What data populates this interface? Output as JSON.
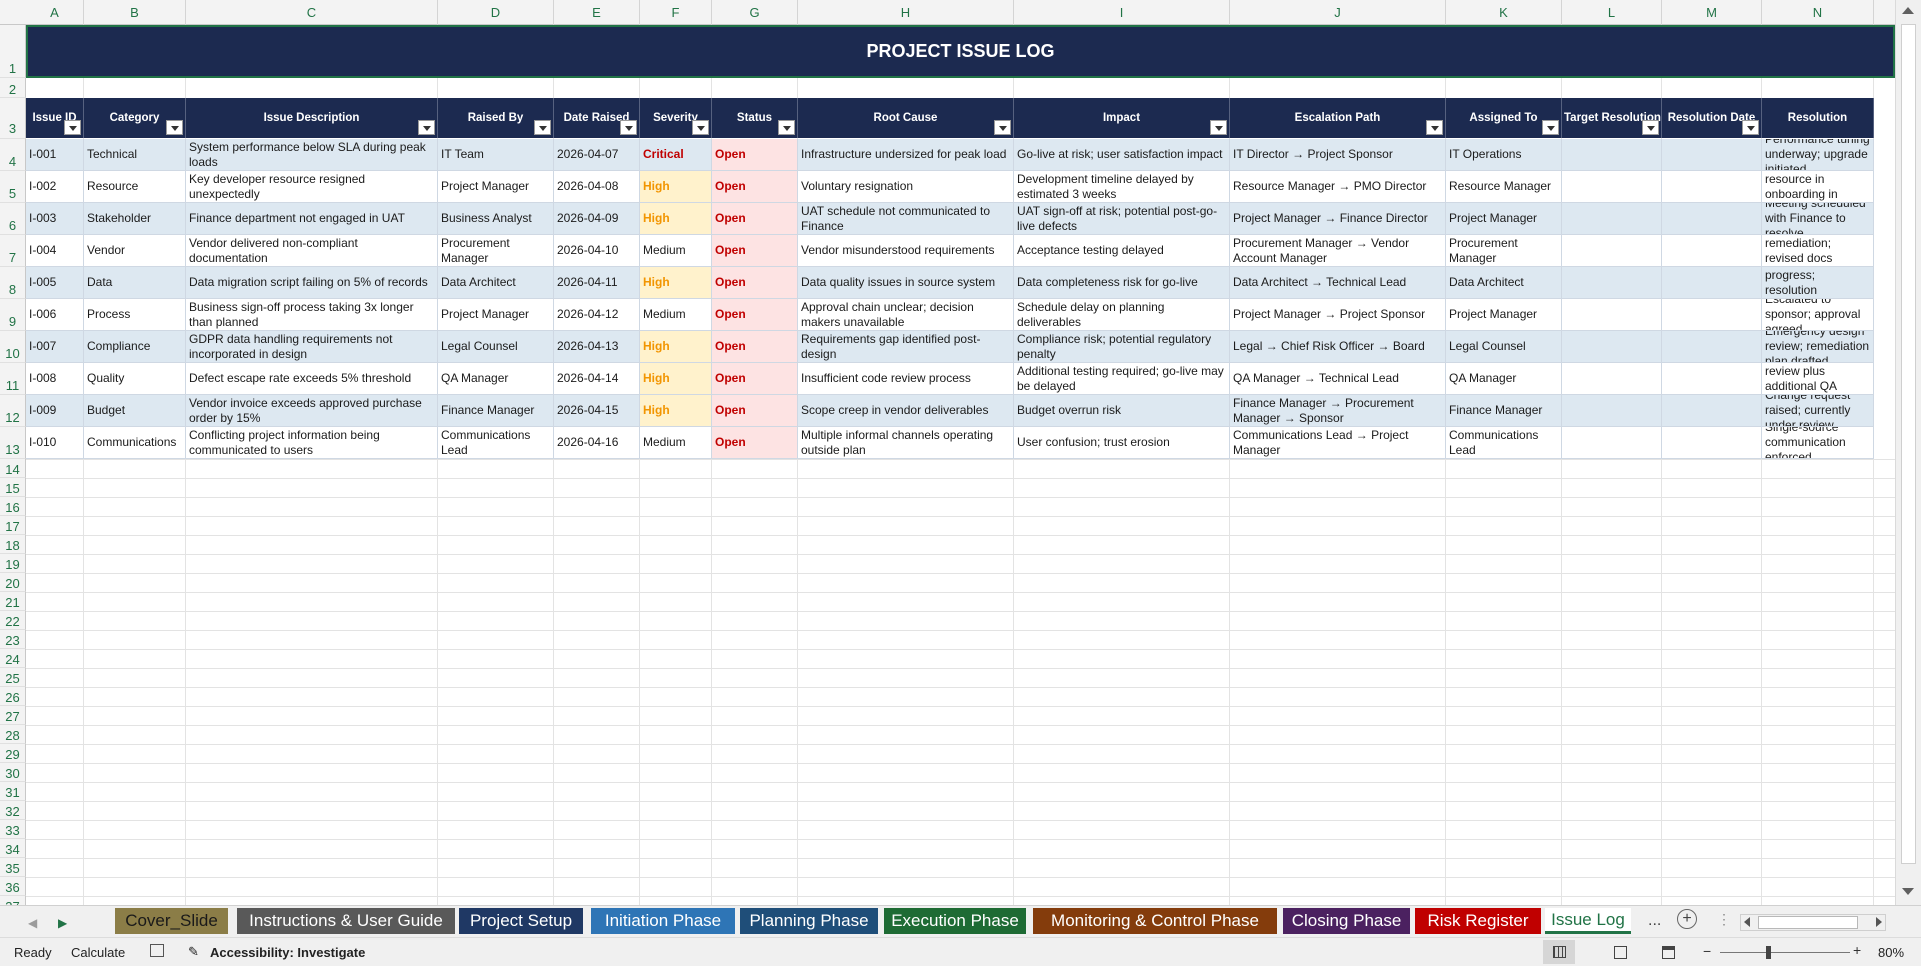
{
  "columns": [
    "A",
    "B",
    "C",
    "D",
    "E",
    "F",
    "G",
    "H",
    "I",
    "J",
    "K",
    "L",
    "M",
    "N"
  ],
  "row_numbers": [
    "1",
    "2",
    "3",
    "4",
    "5",
    "6",
    "7",
    "8",
    "9",
    "10",
    "11",
    "12",
    "13",
    "14",
    "15",
    "16",
    "17",
    "18",
    "19",
    "20",
    "21",
    "22",
    "23",
    "24",
    "25",
    "26",
    "27",
    "28",
    "29",
    "30",
    "31",
    "32",
    "33",
    "34",
    "35",
    "36",
    "37"
  ],
  "title": "PROJECT ISSUE LOG",
  "headers": [
    "Issue ID",
    "Category",
    "Issue Description",
    "Raised By",
    "Date Raised",
    "Severity",
    "Status",
    "Root Cause",
    "Impact",
    "Escalation Path",
    "Assigned To",
    "Target Resolution",
    "Resolution Date",
    "Resolution"
  ],
  "rows": [
    [
      "I-001",
      "Technical",
      "System performance below SLA during peak loads",
      "IT Team",
      "2026-04-07",
      "Critical",
      "Open",
      "Infrastructure undersized for peak load",
      "Go-live at risk; user satisfaction impact",
      "IT Director → Project Sponsor",
      "IT Operations",
      "",
      "",
      "Performance tuning underway; upgrade initiated"
    ],
    [
      "I-002",
      "Resource",
      "Key developer resource resigned unexpectedly",
      "Project Manager",
      "2026-04-08",
      "High",
      "Open",
      "Voluntary resignation",
      "Development timeline delayed by estimated 3 weeks",
      "Resource Manager → PMO Director",
      "Resource Manager",
      "",
      "",
      "Replacement resource in onboarding in progress"
    ],
    [
      "I-003",
      "Stakeholder",
      "Finance department not engaged in UAT",
      "Business Analyst",
      "2026-04-09",
      "High",
      "Open",
      "UAT schedule not communicated to Finance",
      "UAT sign-off at risk; potential post-go-live defects",
      "Project Manager → Finance Director",
      "Project Manager",
      "",
      "",
      "Meeting scheduled with Finance to resolve"
    ],
    [
      "I-004",
      "Vendor",
      "Vendor delivered non-compliant documentation",
      "Procurement Manager",
      "2026-04-10",
      "Medium",
      "Open",
      "Vendor misunderstood requirements",
      "Acceptance testing delayed",
      "Procurement Manager → Vendor Account Manager",
      "Procurement Manager",
      "",
      "",
      "Vendor issued remediation; revised docs expected"
    ],
    [
      "I-005",
      "Data",
      "Data migration script failing on 5% of records",
      "Data Architect",
      "2026-04-11",
      "High",
      "Open",
      "Data quality issues in source system",
      "Data completeness risk for go-live",
      "Data Architect → Technical Lead",
      "Data Architect",
      "",
      "",
      "Data cleansing in progress; resolution confirmed"
    ],
    [
      "I-006",
      "Process",
      "Business sign-off process taking 3x longer than planned",
      "Project Manager",
      "2026-04-12",
      "Medium",
      "Open",
      "Approval chain unclear; decision makers unavailable",
      "Schedule delay on planning deliverables",
      "Project Manager → Project Sponsor",
      "Project Manager",
      "",
      "",
      "Escalated to sponsor; approval agreed"
    ],
    [
      "I-007",
      "Compliance",
      "GDPR data handling requirements not incorporated in design",
      "Legal Counsel",
      "2026-04-13",
      "High",
      "Open",
      "Requirements gap identified post-design",
      "Compliance risk; potential regulatory penalty",
      "Legal → Chief Risk Officer → Board",
      "Legal Counsel",
      "",
      "",
      "Emergency design review; remediation plan drafted"
    ],
    [
      "I-008",
      "Quality",
      "Defect escape rate exceeds 5% threshold",
      "QA Manager",
      "2026-04-14",
      "High",
      "Open",
      "Insufficient code review process",
      "Additional testing required; go-live may be delayed",
      "QA Manager → Technical Lead",
      "QA Manager",
      "",
      "",
      "Mandatory code review plus additional QA resources"
    ],
    [
      "I-009",
      "Budget",
      "Vendor invoice exceeds approved purchase order by 15%",
      "Finance Manager",
      "2026-04-15",
      "High",
      "Open",
      "Scope creep in vendor deliverables",
      "Budget overrun risk",
      "Finance Manager → Procurement Manager → Sponsor",
      "Finance Manager",
      "",
      "",
      "Change request raised; currently under review"
    ],
    [
      "I-010",
      "Communications",
      "Conflicting project information being communicated to users",
      "Communications Lead",
      "2026-04-16",
      "Medium",
      "Open",
      "Multiple informal channels operating outside plan",
      "User confusion; trust erosion",
      "Communications Lead → Project Manager",
      "Communications Lead",
      "",
      "",
      "Single-source communication enforced"
    ]
  ],
  "tabs": [
    {
      "label": "Cover_Slide",
      "color": "#8b7d47",
      "text": "#1a1a1a"
    },
    {
      "label": "Instructions & User Guide",
      "color": "#595959",
      "text": "#ffffff"
    },
    {
      "label": "Project Setup",
      "color": "#1f3864",
      "text": "#ffffff"
    },
    {
      "label": "Initiation Phase",
      "color": "#2e75b6",
      "text": "#ffffff"
    },
    {
      "label": "Planning Phase",
      "color": "#1f4e79",
      "text": "#ffffff"
    },
    {
      "label": "Execution Phase",
      "color": "#1e6b34",
      "text": "#ffffff"
    },
    {
      "label": "Monitoring & Control Phase",
      "color": "#843c0c",
      "text": "#ffffff"
    },
    {
      "label": "Closing Phase",
      "color": "#4b2160",
      "text": "#ffffff"
    },
    {
      "label": "Risk Register",
      "color": "#c00000",
      "text": "#ffffff"
    },
    {
      "label": "Issue Log",
      "color": "#ffffff",
      "text": "#217346",
      "active": true
    }
  ],
  "tabs_more": "...",
  "status": {
    "ready": "Ready",
    "calculate": "Calculate",
    "accessibility": "Accessibility: Investigate",
    "zoom": "80%"
  },
  "colors": {
    "header_navy": "#1c2a50",
    "alt_row": "#dde8f1",
    "excel_green": "#217346"
  }
}
